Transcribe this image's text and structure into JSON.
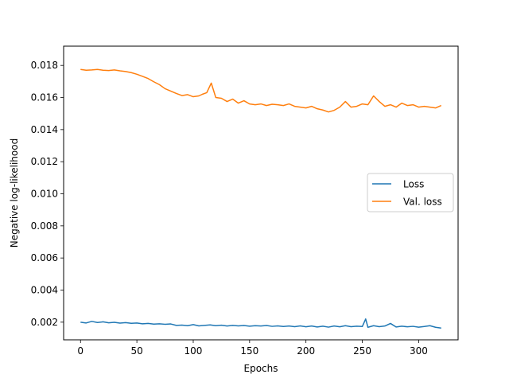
{
  "chart_data": {
    "type": "line",
    "title": "",
    "xlabel": "Epochs",
    "ylabel": "Negative log-likelihood",
    "xlim": [
      -15,
      335
    ],
    "ylim": [
      0.0009,
      0.0192
    ],
    "xticks": [
      0,
      50,
      100,
      150,
      200,
      250,
      300
    ],
    "yticks": [
      0.002,
      0.004,
      0.006,
      0.008,
      0.01,
      0.012,
      0.014,
      0.016,
      0.018
    ],
    "ytick_labels": [
      "0.002",
      "0.004",
      "0.006",
      "0.008",
      "0.010",
      "0.012",
      "0.014",
      "0.016",
      "0.018"
    ],
    "grid": false,
    "legend_position": "center-right",
    "series": [
      {
        "name": "Loss",
        "color": "#1f77b4",
        "x": [
          0,
          5,
          10,
          15,
          20,
          25,
          30,
          35,
          40,
          45,
          50,
          55,
          60,
          65,
          70,
          75,
          80,
          85,
          90,
          95,
          100,
          105,
          110,
          115,
          120,
          125,
          130,
          135,
          140,
          145,
          150,
          155,
          160,
          165,
          170,
          175,
          180,
          185,
          190,
          195,
          200,
          205,
          210,
          215,
          220,
          225,
          230,
          235,
          240,
          245,
          250,
          253,
          255,
          260,
          265,
          270,
          275,
          280,
          285,
          290,
          295,
          300,
          305,
          310,
          315,
          320
        ],
        "y": [
          0.002,
          0.00195,
          0.00205,
          0.00198,
          0.00202,
          0.00196,
          0.00199,
          0.00194,
          0.00197,
          0.00193,
          0.00195,
          0.0019,
          0.00192,
          0.00188,
          0.0019,
          0.00187,
          0.00189,
          0.0018,
          0.00182,
          0.00178,
          0.00185,
          0.00177,
          0.0018,
          0.00183,
          0.00178,
          0.00181,
          0.00176,
          0.0018,
          0.00177,
          0.00179,
          0.00175,
          0.00178,
          0.00176,
          0.00179,
          0.00174,
          0.00177,
          0.00173,
          0.00176,
          0.00172,
          0.00177,
          0.00171,
          0.00176,
          0.0017,
          0.00175,
          0.00169,
          0.00176,
          0.00171,
          0.00178,
          0.00172,
          0.00175,
          0.00173,
          0.0022,
          0.00168,
          0.00178,
          0.00172,
          0.00176,
          0.00192,
          0.0017,
          0.00175,
          0.00171,
          0.00174,
          0.00169,
          0.00173,
          0.00178,
          0.00168,
          0.00163
        ]
      },
      {
        "name": "Val. loss",
        "color": "#ff7f0e",
        "x": [
          0,
          5,
          10,
          15,
          20,
          25,
          30,
          35,
          40,
          45,
          50,
          55,
          60,
          65,
          70,
          75,
          80,
          85,
          90,
          95,
          100,
          105,
          108,
          112,
          116,
          120,
          125,
          130,
          135,
          140,
          145,
          150,
          155,
          160,
          165,
          170,
          175,
          180,
          185,
          190,
          195,
          200,
          205,
          210,
          215,
          220,
          225,
          230,
          235,
          240,
          245,
          250,
          255,
          260,
          265,
          270,
          275,
          280,
          285,
          290,
          295,
          300,
          305,
          310,
          315,
          320
        ],
        "y": [
          0.01775,
          0.0177,
          0.01772,
          0.01775,
          0.0177,
          0.01768,
          0.01772,
          0.01766,
          0.01762,
          0.01755,
          0.01745,
          0.01732,
          0.01718,
          0.01698,
          0.0168,
          0.01655,
          0.0164,
          0.01625,
          0.01612,
          0.01618,
          0.01605,
          0.0161,
          0.0162,
          0.0163,
          0.0169,
          0.016,
          0.01595,
          0.01575,
          0.0159,
          0.01565,
          0.0158,
          0.0156,
          0.01555,
          0.0156,
          0.0155,
          0.01558,
          0.01555,
          0.0155,
          0.0156,
          0.01545,
          0.0154,
          0.01535,
          0.01545,
          0.0153,
          0.01522,
          0.0151,
          0.0152,
          0.0154,
          0.01575,
          0.0154,
          0.01545,
          0.0156,
          0.01555,
          0.0161,
          0.01575,
          0.01545,
          0.01555,
          0.0154,
          0.01565,
          0.0155,
          0.01555,
          0.0154,
          0.01545,
          0.0154,
          0.01535,
          0.0155
        ]
      }
    ]
  }
}
